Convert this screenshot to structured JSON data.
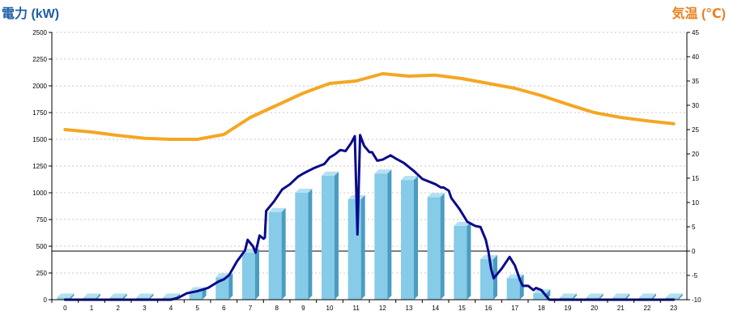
{
  "chart_data": {
    "type": "bar+line",
    "left_axis": {
      "label": "電力 (kW)",
      "min": 0,
      "max": 2500,
      "ticks": [
        0,
        250,
        500,
        750,
        1000,
        1250,
        1500,
        1750,
        2000,
        2250,
        2500
      ]
    },
    "right_axis": {
      "label": "気温 (℃)",
      "min": -10,
      "max": 45,
      "ticks": [
        -10,
        -5,
        0,
        5,
        10,
        15,
        20,
        25,
        30,
        35,
        40,
        45
      ]
    },
    "categories": [
      "0",
      "1",
      "2",
      "3",
      "4",
      "5",
      "6",
      "7",
      "8",
      "9",
      "10",
      "11",
      "12",
      "13",
      "14",
      "15",
      "16",
      "17",
      "18",
      "19",
      "20",
      "21",
      "22",
      "23"
    ],
    "bars": {
      "axis": "left",
      "values": [
        20,
        20,
        20,
        20,
        20,
        80,
        210,
        440,
        820,
        1000,
        1160,
        940,
        1180,
        1120,
        960,
        690,
        380,
        200,
        60,
        20,
        20,
        20,
        20,
        20
      ],
      "color": "#86cbe8",
      "side_color": "#4a9cc2",
      "top_color": "#b4e0f2"
    },
    "power_line": {
      "axis": "left",
      "color": "#0a0a8c",
      "points": [
        [
          0,
          0
        ],
        [
          1,
          0
        ],
        [
          2,
          0
        ],
        [
          3,
          0
        ],
        [
          4,
          0
        ],
        [
          4.3,
          20
        ],
        [
          4.6,
          60
        ],
        [
          5,
          80
        ],
        [
          5.4,
          110
        ],
        [
          5.8,
          170
        ],
        [
          6,
          190
        ],
        [
          6.2,
          230
        ],
        [
          6.5,
          360
        ],
        [
          6.8,
          460
        ],
        [
          6.9,
          560
        ],
        [
          7.1,
          500
        ],
        [
          7.2,
          440
        ],
        [
          7.35,
          600
        ],
        [
          7.5,
          570
        ],
        [
          7.55,
          580
        ],
        [
          7.6,
          830
        ],
        [
          7.9,
          920
        ],
        [
          8.2,
          1030
        ],
        [
          8.5,
          1080
        ],
        [
          8.8,
          1150
        ],
        [
          9.0,
          1180
        ],
        [
          9.4,
          1230
        ],
        [
          9.6,
          1250
        ],
        [
          9.8,
          1270
        ],
        [
          10.0,
          1330
        ],
        [
          10.2,
          1360
        ],
        [
          10.4,
          1400
        ],
        [
          10.6,
          1390
        ],
        [
          10.8,
          1460
        ],
        [
          10.95,
          1530
        ],
        [
          11.05,
          610
        ],
        [
          11.15,
          1540
        ],
        [
          11.3,
          1440
        ],
        [
          11.5,
          1380
        ],
        [
          11.6,
          1380
        ],
        [
          11.8,
          1300
        ],
        [
          12.0,
          1310
        ],
        [
          12.3,
          1350
        ],
        [
          12.5,
          1320
        ],
        [
          12.8,
          1280
        ],
        [
          13.0,
          1240
        ],
        [
          13.2,
          1200
        ],
        [
          13.5,
          1130
        ],
        [
          13.8,
          1100
        ],
        [
          14.0,
          1080
        ],
        [
          14.2,
          1050
        ],
        [
          14.3,
          1050
        ],
        [
          14.5,
          1020
        ],
        [
          14.6,
          950
        ],
        [
          14.9,
          850
        ],
        [
          15.2,
          730
        ],
        [
          15.5,
          690
        ],
        [
          15.7,
          680
        ],
        [
          15.9,
          560
        ],
        [
          16.0,
          450
        ],
        [
          16.1,
          290
        ],
        [
          16.2,
          200
        ],
        [
          16.5,
          290
        ],
        [
          16.8,
          400
        ],
        [
          17.0,
          320
        ],
        [
          17.2,
          180
        ],
        [
          17.3,
          130
        ],
        [
          17.5,
          130
        ],
        [
          17.7,
          90
        ],
        [
          17.8,
          110
        ],
        [
          18.0,
          90
        ],
        [
          18.3,
          0
        ],
        [
          19,
          0
        ],
        [
          20,
          0
        ],
        [
          21,
          0
        ],
        [
          22,
          0
        ],
        [
          23,
          0
        ]
      ]
    },
    "temperature_line": {
      "axis": "right",
      "color": "#f5a623",
      "points": [
        [
          0,
          25
        ],
        [
          1,
          24.5
        ],
        [
          2,
          23.8
        ],
        [
          3,
          23.2
        ],
        [
          4,
          23
        ],
        [
          5,
          23
        ],
        [
          6,
          24
        ],
        [
          7,
          27.5
        ],
        [
          8,
          30
        ],
        [
          9,
          32.5
        ],
        [
          10,
          34.5
        ],
        [
          11,
          35
        ],
        [
          12,
          36.5
        ],
        [
          13,
          36
        ],
        [
          14,
          36.2
        ],
        [
          15,
          35.5
        ],
        [
          16,
          34.5
        ],
        [
          17,
          33.5
        ],
        [
          18,
          32
        ],
        [
          19,
          30.2
        ],
        [
          20,
          28.5
        ],
        [
          21,
          27.5
        ],
        [
          22,
          26.8
        ],
        [
          23,
          26.2
        ]
      ]
    },
    "grid": true
  }
}
